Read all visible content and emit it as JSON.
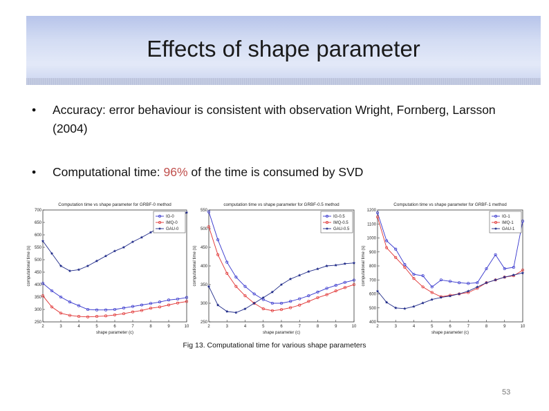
{
  "slide": {
    "title": "Effects of shape parameter",
    "bullet_marker": "•",
    "bullet1_text": "Accuracy:  error behaviour is consistent with observation Wright, Fornberg, Larsson (2004)",
    "bullet2_before": "Computational time: ",
    "bullet2_highlight": "96%",
    "bullet2_after": " of the time is consumed by SVD",
    "caption": "Fig 13. Computational time for various shape parameters",
    "page_number": "53"
  },
  "colors": {
    "title_text": "#1a1a1a",
    "highlight": "#c0504d",
    "series_blue": "#3333cc",
    "series_red": "#e03030",
    "series_navy": "#1f2a88"
  },
  "chart_data": [
    {
      "type": "line",
      "title": "Computation time vs shape parameter for GRBF-0 method",
      "xlabel": "shape parameter (c)",
      "ylabel": "computational time (s)",
      "xlim": [
        2,
        10
      ],
      "ylim": [
        250,
        700
      ],
      "xticks": [
        2,
        3,
        4,
        5,
        6,
        7,
        8,
        9,
        10
      ],
      "yticks": [
        250,
        300,
        350,
        400,
        450,
        500,
        550,
        600,
        650,
        700
      ],
      "x": [
        2,
        2.5,
        3,
        3.5,
        4,
        4.5,
        5,
        5.5,
        6,
        6.5,
        7,
        7.5,
        8,
        8.5,
        9,
        9.5,
        10
      ],
      "legend_position": "top-right",
      "series": [
        {
          "name": "IG-0",
          "marker": "circle",
          "values": [
            405,
            375,
            350,
            330,
            315,
            300,
            298,
            298,
            300,
            306,
            312,
            318,
            324,
            330,
            338,
            342,
            348
          ]
        },
        {
          "name": "IMQ-0",
          "marker": "circle",
          "values": [
            355,
            310,
            285,
            276,
            272,
            270,
            272,
            274,
            278,
            283,
            290,
            296,
            305,
            310,
            318,
            326,
            332
          ]
        },
        {
          "name": "GAU-0",
          "marker": "star",
          "values": [
            575,
            525,
            475,
            455,
            460,
            475,
            495,
            515,
            535,
            550,
            572,
            590,
            610,
            630,
            650,
            665,
            690
          ]
        }
      ]
    },
    {
      "type": "line",
      "title": "computation time vs shape parameter for GRBF-0.5 method",
      "xlabel": "shape parameter (c)",
      "ylabel": "computational time (s)",
      "xlim": [
        2,
        10
      ],
      "ylim": [
        250,
        550
      ],
      "xticks": [
        2,
        3,
        4,
        5,
        6,
        7,
        8,
        9,
        10
      ],
      "yticks": [
        250,
        300,
        350,
        400,
        450,
        500,
        550
      ],
      "x": [
        2,
        2.5,
        3,
        3.5,
        4,
        4.5,
        5,
        5.5,
        6,
        6.5,
        7,
        7.5,
        8,
        8.5,
        9,
        9.5,
        10
      ],
      "legend_position": "top-right",
      "series": [
        {
          "name": "IG-0.5",
          "marker": "circle",
          "values": [
            545,
            470,
            410,
            370,
            345,
            325,
            310,
            300,
            300,
            305,
            312,
            320,
            330,
            340,
            348,
            356,
            362
          ]
        },
        {
          "name": "IMQ-0.5",
          "marker": "circle",
          "values": [
            505,
            430,
            380,
            345,
            320,
            300,
            285,
            280,
            283,
            288,
            295,
            305,
            315,
            323,
            333,
            342,
            350
          ]
        },
        {
          "name": "GAU-0.5",
          "marker": "star",
          "values": [
            345,
            295,
            278,
            275,
            285,
            300,
            315,
            330,
            350,
            365,
            375,
            385,
            392,
            400,
            402,
            406,
            408
          ]
        }
      ]
    },
    {
      "type": "line",
      "title": "Computation time vs shape parameter for GRBF-1 method",
      "xlabel": "shape parameter (c)",
      "ylabel": "computational time (s)",
      "xlim": [
        2,
        10
      ],
      "ylim": [
        400,
        1200
      ],
      "xticks": [
        2,
        3,
        4,
        5,
        6,
        7,
        8,
        9,
        10
      ],
      "yticks": [
        400,
        500,
        600,
        700,
        800,
        900,
        1000,
        1100,
        1200
      ],
      "x": [
        2,
        2.5,
        3,
        3.5,
        4,
        4.5,
        5,
        5.5,
        6,
        6.5,
        7,
        7.5,
        8,
        8.5,
        9,
        9.5,
        10
      ],
      "legend_position": "top-right",
      "series": [
        {
          "name": "IG-1",
          "marker": "circle",
          "values": [
            1180,
            980,
            920,
            810,
            740,
            730,
            650,
            700,
            690,
            680,
            675,
            680,
            780,
            880,
            780,
            790,
            1120
          ]
        },
        {
          "name": "IMQ-1",
          "marker": "circle",
          "values": [
            1150,
            930,
            860,
            790,
            710,
            650,
            610,
            580,
            590,
            600,
            610,
            640,
            680,
            700,
            720,
            730,
            770
          ]
        },
        {
          "name": "GAU-1",
          "marker": "star",
          "values": [
            620,
            540,
            500,
            495,
            510,
            535,
            560,
            575,
            585,
            600,
            620,
            650,
            680,
            700,
            720,
            735,
            750
          ]
        }
      ]
    }
  ]
}
